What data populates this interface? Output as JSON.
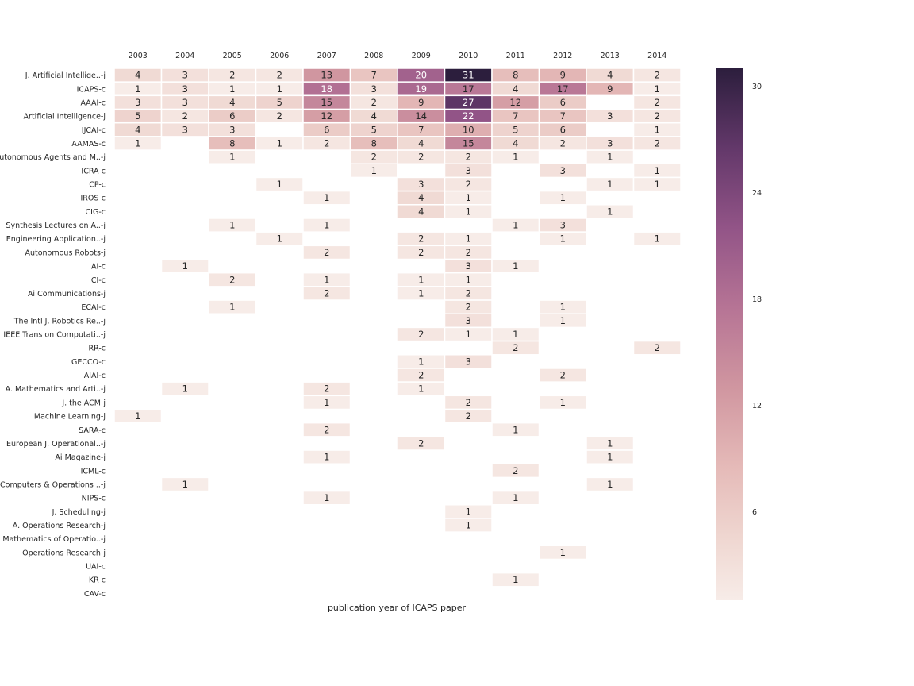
{
  "chart_data": {
    "type": "heatmap",
    "xlabel": "publication year of ICAPS paper",
    "x_categories": [
      "2003",
      "2004",
      "2005",
      "2006",
      "2007",
      "2008",
      "2009",
      "2010",
      "2011",
      "2012",
      "2013",
      "2014"
    ],
    "y_categories": [
      "J. Artificial Intellige..-j",
      "ICAPS-c",
      "AAAI-c",
      "Artificial Intelligence-j",
      "IJCAI-c",
      "AAMAS-c",
      "Autonomous Agents and M..-j",
      "ICRA-c",
      "CP-c",
      "IROS-c",
      "CIG-c",
      "Synthesis Lectures on A..-j",
      "Engineering Application..-j",
      "Autonomous Robots-j",
      "AI-c",
      "CI-c",
      "Ai Communications-j",
      "ECAI-c",
      "The Intl J. Robotics Re..-j",
      "IEEE Trans on Computati..-j",
      "RR-c",
      "GECCO-c",
      "AIAI-c",
      "A. Mathematics and Arti..-j",
      "J. the ACM-j",
      "Machine Learning-j",
      "SARA-c",
      "European J. Operational..-j",
      "Ai Magazine-j",
      "ICML-c",
      "Computers & Operations ..-j",
      "NIPS-c",
      "J. Scheduling-j",
      "A. Operations Research-j",
      "Mathematics of Operatio..-j",
      "Operations Research-j",
      "UAI-c",
      "KR-c",
      "CAV-c"
    ],
    "values": [
      [
        4,
        3,
        2,
        2,
        13,
        7,
        20,
        31,
        8,
        9,
        4,
        2
      ],
      [
        1,
        3,
        1,
        1,
        18,
        3,
        19,
        17,
        4,
        17,
        9,
        1
      ],
      [
        3,
        3,
        4,
        5,
        15,
        2,
        9,
        27,
        12,
        6,
        null,
        2
      ],
      [
        5,
        2,
        6,
        2,
        12,
        4,
        14,
        22,
        7,
        7,
        3,
        2
      ],
      [
        4,
        3,
        3,
        null,
        6,
        5,
        7,
        10,
        5,
        6,
        null,
        1
      ],
      [
        1,
        null,
        8,
        1,
        2,
        8,
        4,
        15,
        4,
        2,
        3,
        2
      ],
      [
        null,
        null,
        1,
        null,
        null,
        2,
        2,
        2,
        1,
        null,
        1,
        null
      ],
      [
        null,
        null,
        null,
        null,
        null,
        1,
        null,
        3,
        null,
        3,
        null,
        1
      ],
      [
        null,
        null,
        null,
        1,
        null,
        null,
        3,
        2,
        null,
        null,
        1,
        1
      ],
      [
        null,
        null,
        null,
        null,
        1,
        null,
        4,
        1,
        null,
        1,
        null,
        null
      ],
      [
        null,
        null,
        null,
        null,
        null,
        null,
        4,
        1,
        null,
        null,
        1,
        null
      ],
      [
        null,
        null,
        1,
        null,
        1,
        null,
        null,
        null,
        1,
        3,
        null,
        null
      ],
      [
        null,
        null,
        null,
        1,
        null,
        null,
        2,
        1,
        null,
        1,
        null,
        1
      ],
      [
        null,
        null,
        null,
        null,
        2,
        null,
        2,
        2,
        null,
        null,
        null,
        null
      ],
      [
        null,
        1,
        null,
        null,
        null,
        null,
        null,
        3,
        1,
        null,
        null,
        null
      ],
      [
        null,
        null,
        2,
        null,
        1,
        null,
        1,
        1,
        null,
        null,
        null,
        null
      ],
      [
        null,
        null,
        null,
        null,
        2,
        null,
        1,
        2,
        null,
        null,
        null,
        null
      ],
      [
        null,
        null,
        1,
        null,
        null,
        null,
        null,
        2,
        null,
        1,
        null,
        null
      ],
      [
        null,
        null,
        null,
        null,
        null,
        null,
        null,
        3,
        null,
        1,
        null,
        null
      ],
      [
        null,
        null,
        null,
        null,
        null,
        null,
        2,
        1,
        1,
        null,
        null,
        null
      ],
      [
        null,
        null,
        null,
        null,
        null,
        null,
        null,
        null,
        2,
        null,
        null,
        2
      ],
      [
        null,
        null,
        null,
        null,
        null,
        null,
        1,
        3,
        null,
        null,
        null,
        null
      ],
      [
        null,
        null,
        null,
        null,
        null,
        null,
        2,
        null,
        null,
        2,
        null,
        null
      ],
      [
        null,
        1,
        null,
        null,
        2,
        null,
        1,
        null,
        null,
        null,
        null,
        null
      ],
      [
        null,
        null,
        null,
        null,
        1,
        null,
        null,
        2,
        null,
        1,
        null,
        null
      ],
      [
        1,
        null,
        null,
        null,
        null,
        null,
        null,
        2,
        null,
        null,
        null,
        null
      ],
      [
        null,
        null,
        null,
        null,
        2,
        null,
        null,
        null,
        1,
        null,
        null,
        null
      ],
      [
        null,
        null,
        null,
        null,
        null,
        null,
        2,
        null,
        null,
        null,
        1,
        null
      ],
      [
        null,
        null,
        null,
        null,
        1,
        null,
        null,
        null,
        null,
        null,
        1,
        null
      ],
      [
        null,
        null,
        null,
        null,
        null,
        null,
        null,
        null,
        2,
        null,
        null,
        null
      ],
      [
        null,
        1,
        null,
        null,
        null,
        null,
        null,
        null,
        null,
        null,
        1,
        null
      ],
      [
        null,
        null,
        null,
        null,
        1,
        null,
        null,
        null,
        1,
        null,
        null,
        null
      ],
      [
        null,
        null,
        null,
        null,
        null,
        null,
        null,
        1,
        null,
        null,
        null,
        null
      ],
      [
        null,
        null,
        null,
        null,
        null,
        null,
        null,
        1,
        null,
        null,
        null,
        null
      ],
      [
        null,
        null,
        null,
        null,
        null,
        null,
        null,
        null,
        null,
        null,
        null,
        null
      ],
      [
        null,
        null,
        null,
        null,
        null,
        null,
        null,
        null,
        null,
        1,
        null,
        null
      ],
      [
        null,
        null,
        null,
        null,
        null,
        null,
        null,
        null,
        null,
        null,
        null,
        null
      ],
      [
        null,
        null,
        null,
        null,
        null,
        null,
        null,
        null,
        1,
        null,
        null,
        null
      ],
      [
        null,
        null,
        null,
        null,
        null,
        null,
        null,
        null,
        null,
        null,
        null,
        null
      ]
    ],
    "colorbar": {
      "ticks": [
        6,
        12,
        18,
        24,
        30
      ],
      "range": [
        1,
        31
      ],
      "colormap": "cubehelix light-to-dark purple",
      "color_low": "#f7ece8",
      "color_high": "#2c1e3d"
    },
    "grid": false,
    "legend_placement": "right"
  }
}
